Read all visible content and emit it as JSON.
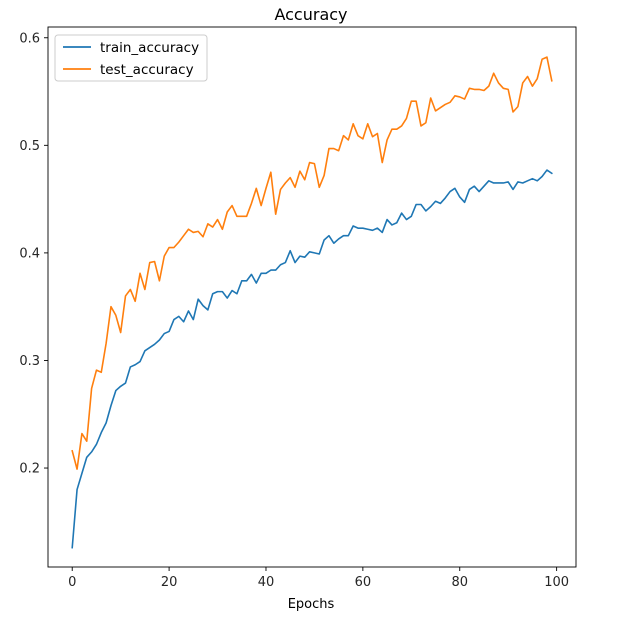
{
  "chart_data": {
    "type": "line",
    "title": "Accuracy",
    "xlabel": "Epochs",
    "ylabel": "",
    "xlim": [
      -5,
      104
    ],
    "ylim": [
      0.108,
      0.61
    ],
    "xticks": [
      0,
      20,
      40,
      60,
      80,
      100
    ],
    "yticks": [
      0.2,
      0.3,
      0.4,
      0.5,
      0.6
    ],
    "grid": false,
    "legend": "upper-left",
    "series": [
      {
        "name": "train_accuracy",
        "color": "#1f77b4",
        "values": [
          0.126,
          0.18,
          0.195,
          0.21,
          0.215,
          0.222,
          0.233,
          0.242,
          0.258,
          0.272,
          0.276,
          0.279,
          0.294,
          0.296,
          0.299,
          0.309,
          0.312,
          0.315,
          0.319,
          0.325,
          0.327,
          0.338,
          0.341,
          0.336,
          0.346,
          0.338,
          0.357,
          0.351,
          0.347,
          0.362,
          0.364,
          0.364,
          0.358,
          0.365,
          0.362,
          0.374,
          0.374,
          0.38,
          0.372,
          0.381,
          0.381,
          0.384,
          0.384,
          0.389,
          0.391,
          0.402,
          0.391,
          0.397,
          0.396,
          0.401,
          0.4,
          0.399,
          0.412,
          0.416,
          0.409,
          0.413,
          0.416,
          0.416,
          0.425,
          0.423,
          0.423,
          0.422,
          0.421,
          0.423,
          0.419,
          0.431,
          0.426,
          0.428,
          0.437,
          0.431,
          0.434,
          0.445,
          0.445,
          0.439,
          0.443,
          0.448,
          0.446,
          0.451,
          0.457,
          0.46,
          0.452,
          0.447,
          0.459,
          0.462,
          0.457,
          0.462,
          0.467,
          0.465,
          0.465,
          0.465,
          0.466,
          0.459,
          0.466,
          0.465,
          0.467,
          0.469,
          0.467,
          0.471,
          0.477,
          0.474
        ]
      },
      {
        "name": "test_accuracy",
        "color": "#ff7f0e",
        "values": [
          0.216,
          0.199,
          0.232,
          0.225,
          0.274,
          0.291,
          0.289,
          0.316,
          0.35,
          0.342,
          0.326,
          0.36,
          0.366,
          0.355,
          0.381,
          0.366,
          0.391,
          0.392,
          0.374,
          0.397,
          0.405,
          0.405,
          0.41,
          0.416,
          0.422,
          0.419,
          0.42,
          0.415,
          0.427,
          0.424,
          0.431,
          0.422,
          0.438,
          0.444,
          0.434,
          0.434,
          0.434,
          0.446,
          0.46,
          0.444,
          0.46,
          0.475,
          0.436,
          0.459,
          0.465,
          0.47,
          0.461,
          0.476,
          0.468,
          0.484,
          0.483,
          0.461,
          0.472,
          0.497,
          0.497,
          0.495,
          0.509,
          0.505,
          0.52,
          0.509,
          0.506,
          0.52,
          0.508,
          0.511,
          0.484,
          0.505,
          0.515,
          0.515,
          0.518,
          0.525,
          0.541,
          0.541,
          0.518,
          0.521,
          0.544,
          0.532,
          0.535,
          0.538,
          0.54,
          0.546,
          0.545,
          0.543,
          0.553,
          0.552,
          0.552,
          0.551,
          0.555,
          0.567,
          0.558,
          0.553,
          0.552,
          0.531,
          0.536,
          0.558,
          0.564,
          0.555,
          0.562,
          0.58,
          0.582,
          0.56
        ]
      }
    ]
  }
}
